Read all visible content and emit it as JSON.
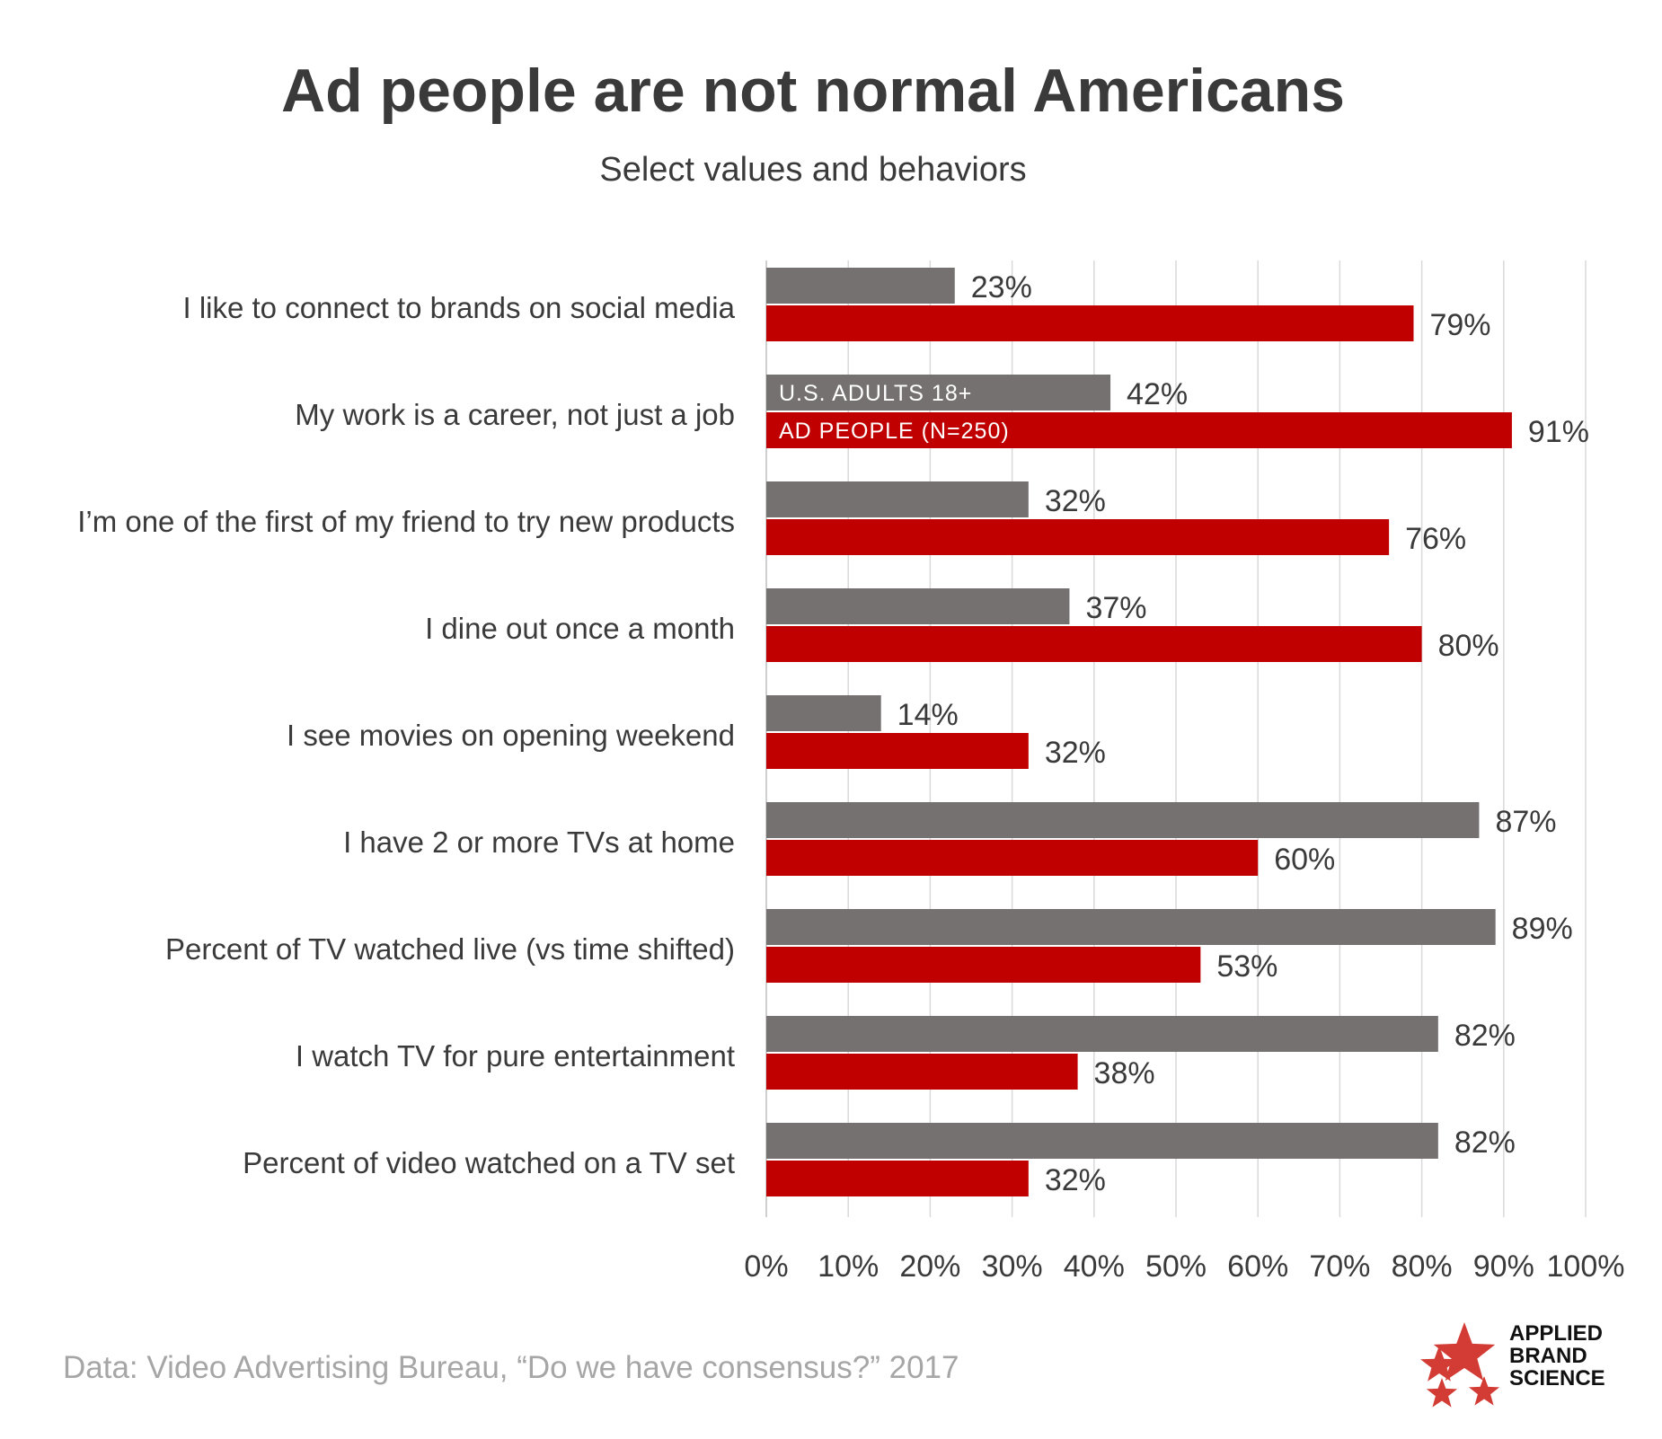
{
  "title": "Ad people are not normal Americans",
  "subtitle": "Select values and behaviors",
  "source": "Data: Video Advertising Bureau, “Do we have consensus?” 2017",
  "logo": {
    "line1": "APPLIED",
    "line2": "BRAND",
    "line3": "SCIENCE"
  },
  "colors": {
    "us_adults": "#767171",
    "ad_people": "#c00000",
    "star": "#d33c34",
    "grid": "#d9d9d9",
    "text": "#3a3a3a"
  },
  "chart_data": {
    "type": "bar",
    "orientation": "horizontal",
    "title": "Ad people are not normal Americans",
    "subtitle": "Select values and behaviors",
    "categories": [
      "I like to connect to brands on social media",
      "My work is a career, not just a job",
      "I’m one of the first of my friend to try new products",
      "I dine out once a month",
      "I see movies on opening weekend",
      "I have 2 or more TVs at home",
      "Percent of TV watched live (vs time shifted)",
      "I watch TV for pure entertainment",
      "Percent of video watched on a TV set"
    ],
    "series": [
      {
        "name": "U.S. ADULTS 18+",
        "values": [
          23,
          42,
          32,
          37,
          14,
          87,
          89,
          82,
          82
        ]
      },
      {
        "name": "AD PEOPLE (N=250)",
        "values": [
          79,
          91,
          76,
          80,
          32,
          60,
          53,
          38,
          32
        ]
      }
    ],
    "legend_placement": "inside-bars-second-category",
    "xlim": [
      0,
      100
    ],
    "xticks": [
      "0%",
      "10%",
      "20%",
      "30%",
      "40%",
      "50%",
      "60%",
      "70%",
      "80%",
      "90%",
      "100%"
    ],
    "grid": true,
    "value_suffix": "%"
  }
}
